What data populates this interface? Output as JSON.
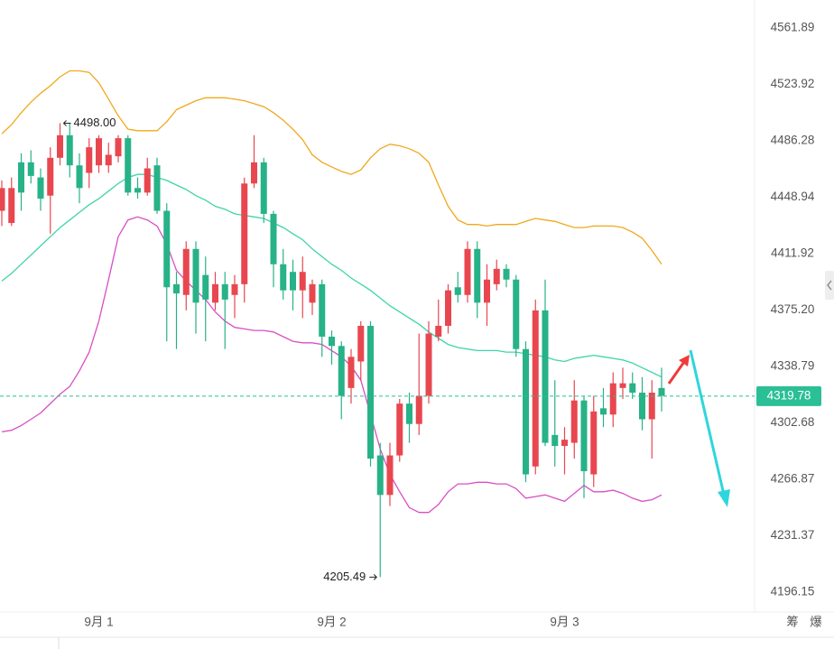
{
  "chart_data": {
    "type": "candlestick",
    "log_scale": true,
    "ylim": [
      4182.72,
      4580.83
    ],
    "yticks": [
      4561.89,
      4523.92,
      4486.28,
      4448.94,
      4411.92,
      {
        "value": 4375.2,
        "label": "4375.20"
      },
      4338.79,
      4302.68,
      4266.87,
      4231.37,
      4196.15
    ],
    "categories": [
      null,
      null,
      null,
      null,
      null,
      null,
      null,
      null,
      null,
      null,
      "9月 1",
      null,
      null,
      null,
      null,
      null,
      null,
      null,
      null,
      null,
      null,
      null,
      null,
      null,
      null,
      null,
      null,
      null,
      null,
      null,
      null,
      null,
      null,
      null,
      "9月 2",
      null,
      null,
      null,
      null,
      null,
      null,
      null,
      null,
      null,
      null,
      null,
      null,
      null,
      null,
      null,
      null,
      null,
      null,
      null,
      null,
      null,
      null,
      null,
      "9月 3",
      null,
      null,
      null,
      null,
      null,
      null,
      null,
      null,
      null,
      null
    ],
    "up_color": "#e8474f",
    "down_color": "#27b287",
    "open": [
      4440,
      4432,
      4472,
      4472,
      4462,
      4450,
      4475,
      4490,
      4470,
      4465,
      4470,
      4470,
      4476,
      4488,
      4455,
      4452,
      4470,
      4440,
      4392,
      4385,
      4415,
      4398,
      4380,
      4392,
      4385,
      4392,
      4458,
      4472,
      4438,
      4405,
      4400,
      4388,
      4380,
      4392,
      4358,
      4352,
      4325,
      4342,
      4365,
      4282,
      4257,
      4282,
      4315,
      4302,
      4320,
      4358,
      4365,
      4390,
      4385,
      4415,
      4380,
      4392,
      4402,
      4395,
      4350,
      4275,
      4375,
      4295,
      4288,
      4290,
      4317,
      4270,
      4312,
      4308,
      4325,
      4328,
      4322,
      4305,
      4325
    ],
    "high": [
      4460,
      4462,
      4478,
      4480,
      4468,
      4482,
      4498,
      4498,
      4478,
      4488,
      4490,
      4485,
      4490,
      4490,
      4462,
      4475,
      4475,
      4445,
      4400,
      4420,
      4420,
      4410,
      4400,
      4400,
      4398,
      4462,
      4490,
      4475,
      4440,
      4415,
      4408,
      4410,
      4395,
      4395,
      4362,
      4355,
      4350,
      4368,
      4368,
      4290,
      4290,
      4318,
      4322,
      4360,
      4368,
      4382,
      4392,
      4400,
      4420,
      4420,
      4405,
      4408,
      4405,
      4398,
      4355,
      4382,
      4395,
      4330,
      4300,
      4330,
      4320,
      4320,
      4325,
      4335,
      4338,
      4335,
      4332,
      4330,
      4338
    ],
    "low": [
      4430,
      4430,
      4440,
      4458,
      4440,
      4425,
      4470,
      4462,
      4445,
      4455,
      4465,
      4465,
      4472,
      4450,
      4448,
      4450,
      4438,
      4355,
      4350,
      4375,
      4360,
      4355,
      4375,
      4350,
      4370,
      4380,
      4455,
      4432,
      4390,
      4382,
      4375,
      4370,
      4372,
      4345,
      4340,
      4305,
      4315,
      4330,
      4275,
      4205.49,
      4250,
      4278,
      4290,
      4295,
      4315,
      4355,
      4360,
      4380,
      4380,
      4370,
      4365,
      4388,
      4390,
      4345,
      4265,
      4270,
      4288,
      4275,
      4270,
      4280,
      4255,
      4262,
      4300,
      4300,
      4318,
      4318,
      4298,
      4280,
      4310
    ],
    "close": [
      4455,
      4455,
      4452,
      4463,
      4448,
      4475,
      4490,
      4470,
      4455,
      4482,
      4488,
      4477,
      4488,
      4452,
      4452,
      4468,
      4440,
      4390,
      4386,
      4415,
      4380,
      4382,
      4392,
      4382,
      4392,
      4458,
      4472,
      4438,
      4405,
      4388,
      4388,
      4400,
      4392,
      4358,
      4352,
      4320,
      4345,
      4365,
      4280,
      4257,
      4282,
      4315,
      4302,
      4320,
      4360,
      4365,
      4388,
      4385,
      4415,
      4380,
      4395,
      4402,
      4395,
      4350,
      4270,
      4375,
      4290,
      4288,
      4292,
      4317,
      4272,
      4310,
      4308,
      4328,
      4328,
      4322,
      4305,
      4322,
      4320
    ],
    "overlays": [
      {
        "color": "#f0a81c",
        "values": [
          4491,
          4497,
          4505,
          4512,
          4518,
          4523,
          4529,
          4533,
          4533,
          4532,
          4525,
          4514,
          4503,
          4494,
          4493,
          4493,
          4493,
          4499,
          4507,
          4510,
          4513,
          4515,
          4515,
          4515,
          4514,
          4513,
          4511,
          4509,
          4505,
          4500,
          4494,
          4487,
          4477,
          4472,
          4469,
          4466,
          4464,
          4467,
          4475,
          4481,
          4484,
          4483,
          4481,
          4478,
          4472,
          4457,
          4443,
          4434,
          4431,
          4431,
          4430,
          4431,
          4431,
          4431,
          4433,
          4435,
          4434,
          4433,
          4431,
          4429,
          4429,
          4430,
          4430,
          4430,
          4429,
          4426,
          4422,
          4414,
          4405
        ]
      },
      {
        "color": "#3fd4aa",
        "values": [
          4394,
          4399,
          4405,
          4411,
          4417,
          4423,
          4429,
          4434,
          4439,
          4444,
          4448,
          4453,
          4458,
          4462,
          4464,
          4464,
          4462,
          4460,
          4457,
          4454,
          4450,
          4447,
          4443,
          4441,
          4438,
          4437,
          4436,
          4435,
          4432,
          4429,
          4425,
          4421,
          4415,
          4410,
          4405,
          4401,
          4396,
          4392,
          4388,
          4383,
          4378,
          4374,
          4370,
          4366,
          4361,
          4357,
          4353,
          4351,
          4350,
          4349,
          4349,
          4349,
          4348,
          4348,
          4347,
          4346,
          4345,
          4343,
          4342,
          4344,
          4345,
          4346,
          4345,
          4344,
          4343,
          4341,
          4338,
          4335,
          4332
        ]
      },
      {
        "color": "#d84fc4",
        "values": [
          4297,
          4298,
          4301,
          4305,
          4309,
          4315,
          4321,
          4326,
          4336,
          4348,
          4368,
          4395,
          4423,
          4434,
          4436,
          4434,
          4430,
          4418,
          4401,
          4394,
          4388,
          4382,
          4374,
          4368,
          4364,
          4363,
          4362,
          4362,
          4361,
          4358,
          4355,
          4354,
          4354,
          4353,
          4349,
          4345,
          4339,
          4330,
          4308,
          4286,
          4270,
          4259,
          4249,
          4246,
          4246,
          4251,
          4259,
          4264,
          4264,
          4265,
          4265,
          4264,
          4264,
          4261,
          4255,
          4256,
          4257,
          4255,
          4253,
          4258,
          4263,
          4259,
          4259,
          4260,
          4258,
          4255,
          4253,
          4254,
          4257
        ]
      }
    ],
    "annotations": [
      {
        "value": 4498,
        "label": "4498.00"
      },
      {
        "value": 4205.49,
        "label": "4205.49"
      }
    ],
    "current_price": 4319.78,
    "current_color": "#2bbf96"
  },
  "toolbar": [
    "筹",
    "爆"
  ]
}
